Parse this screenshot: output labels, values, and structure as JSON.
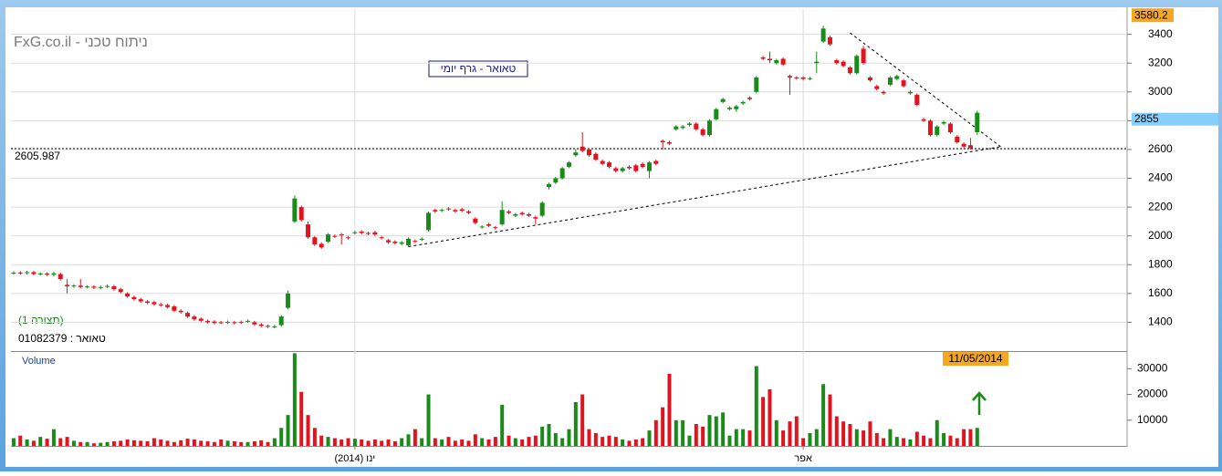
{
  "chart_data": {
    "type": "candlestick",
    "title": "FxG.co.il - ניתוח טכני",
    "chart_label": "טאואר - גרף יומי",
    "pattern_label": "(תצורה 1)",
    "security_label": "טאואר : 01082379",
    "volume_label": "Volume",
    "last_date": "11/05/2014",
    "up_color": "#1a8a1a",
    "down_color": "#e0141e",
    "grid": true,
    "xlim": [
      -0.4,
      166.4
    ],
    "xticks": [
      {
        "value": 51,
        "label": "(2014) ינו"
      },
      {
        "value": 118,
        "label": "אפר"
      }
    ],
    "ylim": [
      1200,
      3575
    ],
    "yticks": [
      1400,
      1600,
      1800,
      2000,
      2200,
      2400,
      2600,
      2800,
      3000,
      3200,
      3400
    ],
    "volume_ylim": [
      0,
      36500
    ],
    "volume_ticks": [
      10000,
      20000,
      30000
    ],
    "horizontal_line": 2605.987,
    "price_tags": {
      "high": 3580.2,
      "last": 2855
    },
    "trendlines": [
      {
        "from": [
          59,
          1925
        ],
        "to": [
          147.5,
          2620
        ]
      },
      {
        "from": [
          125,
          3410
        ],
        "to": [
          147.5,
          2620
        ]
      }
    ],
    "open": [
      1740,
      1745,
      1742,
      1748,
      1735,
      1738,
      1730,
      1735,
      1660,
      1650,
      1655,
      1645,
      1648,
      1640,
      1648,
      1650,
      1630,
      1600,
      1575,
      1560,
      1545,
      1540,
      1525,
      1520,
      1510,
      1480,
      1465,
      1440,
      1425,
      1410,
      1405,
      1400,
      1398,
      1400,
      1402,
      1405,
      1400,
      1385,
      1375,
      1368,
      1380,
      1500,
      2100,
      2200,
      2080,
      1990,
      1945,
      1960,
      2000,
      2010,
      1990,
      2020,
      2030,
      2020,
      2025,
      1990,
      1970,
      1960,
      1945,
      1935,
      1965,
      1975,
      2040,
      2180,
      2175,
      2190,
      2180,
      2185,
      2170,
      2120,
      2060,
      2080,
      2060,
      2080,
      2170,
      2140,
      2160,
      2150,
      2130,
      2140,
      2340,
      2370,
      2400,
      2480,
      2560,
      2620,
      2600,
      2570,
      2520,
      2510,
      2470,
      2450,
      2480,
      2490,
      2500,
      2450,
      2520,
      2660,
      2650,
      2740,
      2750,
      2770,
      2780,
      2740,
      2700,
      2810,
      2930,
      2880,
      2880,
      2920,
      2960,
      3000,
      3240,
      3230,
      3200,
      3230,
      3110,
      3100,
      3100,
      3090,
      3200,
      3350,
      3380,
      3220,
      3210,
      3170,
      3130,
      3300,
      3100,
      3040,
      3000,
      3050,
      3090,
      3080,
      2990,
      2980,
      2810,
      2800,
      2700,
      2780,
      2780,
      2690,
      2640,
      2630,
      2720
    ],
    "high": [
      1755,
      1755,
      1758,
      1758,
      1748,
      1748,
      1750,
      1745,
      1700,
      1665,
      1700,
      1658,
      1658,
      1655,
      1662,
      1660,
      1640,
      1610,
      1585,
      1570,
      1555,
      1550,
      1535,
      1530,
      1520,
      1490,
      1475,
      1450,
      1435,
      1420,
      1415,
      1410,
      1412,
      1410,
      1412,
      1420,
      1410,
      1395,
      1385,
      1382,
      1450,
      1620,
      2280,
      2210,
      2100,
      2000,
      1955,
      2020,
      2010,
      2020,
      2000,
      2035,
      2040,
      2030,
      2035,
      2000,
      1980,
      1970,
      1965,
      1990,
      1975,
      1990,
      2170,
      2190,
      2190,
      2200,
      2190,
      2195,
      2180,
      2130,
      2075,
      2090,
      2070,
      2240,
      2180,
      2160,
      2170,
      2160,
      2140,
      2240,
      2370,
      2410,
      2480,
      2520,
      2600,
      2720,
      2610,
      2580,
      2530,
      2520,
      2480,
      2480,
      2490,
      2500,
      2510,
      2520,
      2530,
      2670,
      2660,
      2770,
      2770,
      2790,
      2790,
      2750,
      2810,
      2890,
      2960,
      2900,
      2910,
      2940,
      2970,
      3110,
      3250,
      3280,
      3230,
      3240,
      3120,
      3110,
      3110,
      3105,
      3280,
      3460,
      3390,
      3230,
      3220,
      3180,
      3260,
      3320,
      3110,
      3050,
      3010,
      3110,
      3120,
      3090,
      3010,
      2990,
      2820,
      2810,
      2770,
      2800,
      2790,
      2700,
      2650,
      2680,
      2870
    ],
    "low": [
      1730,
      1730,
      1732,
      1725,
      1725,
      1720,
      1720,
      1690,
      1600,
      1640,
      1635,
      1635,
      1630,
      1630,
      1638,
      1620,
      1600,
      1570,
      1550,
      1535,
      1525,
      1515,
      1508,
      1495,
      1470,
      1460,
      1430,
      1410,
      1400,
      1390,
      1385,
      1388,
      1388,
      1385,
      1388,
      1395,
      1375,
      1365,
      1360,
      1358,
      1370,
      1490,
      2090,
      2100,
      1980,
      1930,
      1910,
      1950,
      1985,
      1940,
      1975,
      2010,
      2010,
      2005,
      2000,
      1975,
      1945,
      1940,
      1935,
      1925,
      1950,
      1965,
      2030,
      2160,
      2165,
      2175,
      2160,
      2165,
      2150,
      2080,
      2050,
      2060,
      2045,
      2070,
      2150,
      2130,
      2140,
      2130,
      2080,
      2130,
      2320,
      2360,
      2390,
      2470,
      2550,
      2580,
      2550,
      2520,
      2490,
      2470,
      2440,
      2440,
      2460,
      2440,
      2470,
      2400,
      2490,
      2600,
      2630,
      2730,
      2740,
      2760,
      2730,
      2690,
      2690,
      2800,
      2920,
      2870,
      2860,
      2910,
      2940,
      2990,
      3220,
      3200,
      3190,
      3180,
      2980,
      3085,
      3080,
      3080,
      3130,
      3340,
      3320,
      3190,
      3170,
      3120,
      3120,
      3190,
      3070,
      3010,
      2980,
      3040,
      3080,
      3030,
      2980,
      2900,
      2790,
      2690,
      2690,
      2770,
      2710,
      2640,
      2610,
      2600,
      2700
    ],
    "close": [
      1745,
      1740,
      1748,
      1735,
      1738,
      1730,
      1740,
      1700,
      1650,
      1655,
      1645,
      1648,
      1640,
      1645,
      1652,
      1630,
      1610,
      1580,
      1560,
      1545,
      1535,
      1525,
      1518,
      1505,
      1480,
      1470,
      1440,
      1420,
      1410,
      1400,
      1395,
      1398,
      1402,
      1395,
      1398,
      1410,
      1385,
      1375,
      1370,
      1372,
      1440,
      1600,
      2260,
      2110,
      1990,
      1940,
      1920,
      2010,
      1995,
      2005,
      1985,
      2025,
      2020,
      2015,
      2010,
      1985,
      1955,
      1950,
      1955,
      1980,
      1960,
      1980,
      2160,
      2170,
      2180,
      2185,
      2170,
      2175,
      2160,
      2090,
      2065,
      2070,
      2055,
      2180,
      2160,
      2150,
      2150,
      2140,
      2120,
      2230,
      2360,
      2400,
      2470,
      2510,
      2580,
      2590,
      2560,
      2530,
      2500,
      2480,
      2450,
      2470,
      2470,
      2450,
      2480,
      2510,
      2500,
      2650,
      2640,
      2760,
      2760,
      2780,
      2740,
      2700,
      2800,
      2880,
      2950,
      2890,
      2900,
      2930,
      2950,
      3100,
      3230,
      3220,
      3220,
      3190,
      3100,
      3095,
      3090,
      3095,
      3210,
      3440,
      3330,
      3200,
      3180,
      3130,
      3250,
      3200,
      3080,
      3020,
      2990,
      3100,
      3110,
      3040,
      3000,
      2910,
      2800,
      2700,
      2760,
      2790,
      2720,
      2650,
      2620,
      2610,
      2855
    ],
    "volume": [
      3000,
      4000,
      2500,
      2000,
      3500,
      2800,
      6500,
      3000,
      3500,
      2000,
      1500,
      1500,
      1000,
      1200,
      1500,
      1800,
      2000,
      2500,
      2200,
      2000,
      1800,
      3000,
      2500,
      2000,
      1500,
      2200,
      2800,
      2500,
      2000,
      1800,
      1500,
      2500,
      2000,
      1800,
      1500,
      1500,
      1800,
      2200,
      1500,
      3000,
      7000,
      12000,
      36000,
      21000,
      12000,
      7000,
      4000,
      3500,
      3000,
      2500,
      3000,
      2800,
      2500,
      2000,
      2500,
      2000,
      2500,
      1800,
      3000,
      4500,
      6500,
      3000,
      20000,
      3000,
      2500,
      3500,
      2000,
      2500,
      2000,
      4500,
      3000,
      2500,
      3500,
      16000,
      4000,
      3000,
      2500,
      3500,
      4000,
      7500,
      8500,
      5000,
      3000,
      6500,
      17000,
      20000,
      6500,
      5000,
      3500,
      4000,
      3500,
      2500,
      2000,
      2500,
      3000,
      6000,
      10000,
      15000,
      28000,
      10000,
      10000,
      4000,
      8500,
      7500,
      12000,
      11500,
      13000,
      4000,
      6500,
      6500,
      6000,
      31000,
      19000,
      22000,
      10000,
      6000,
      9500,
      11500,
      3000,
      5000,
      6500,
      24000,
      20000,
      11500,
      9500,
      8500,
      6500,
      6000,
      9500,
      5000,
      3000,
      6500,
      3500,
      3000,
      2500,
      5500,
      4000,
      3000,
      10000,
      5000,
      4000,
      3000,
      6500,
      6500,
      7000
    ]
  }
}
